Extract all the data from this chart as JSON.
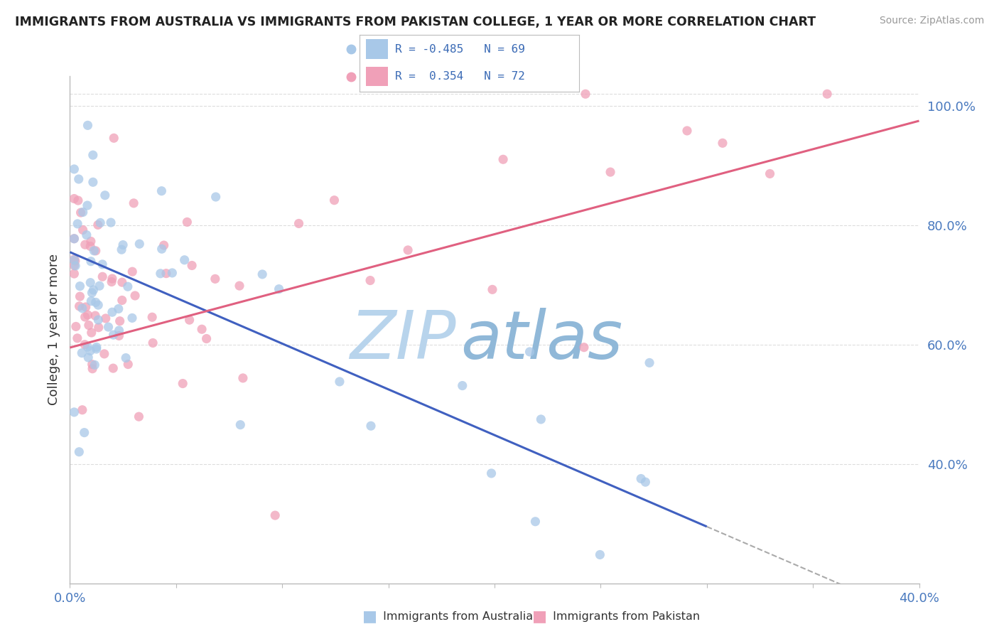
{
  "title": "IMMIGRANTS FROM AUSTRALIA VS IMMIGRANTS FROM PAKISTAN COLLEGE, 1 YEAR OR MORE CORRELATION CHART",
  "source": "Source: ZipAtlas.com",
  "ylabel": "College, 1 year or more",
  "right_yticks": [
    "40.0%",
    "60.0%",
    "80.0%",
    "100.0%"
  ],
  "right_ytick_vals": [
    0.4,
    0.6,
    0.8,
    1.0
  ],
  "australia_color": "#a8c8e8",
  "pakistan_color": "#f0a0b8",
  "australia_line_color": "#4060c0",
  "pakistan_line_color": "#e06080",
  "watermark_zip": "ZIP",
  "watermark_atlas": "atlas",
  "watermark_color": "#c8dff0",
  "background_color": "#ffffff",
  "grid_color": "#dddddd",
  "xlim": [
    0.0,
    0.4
  ],
  "ylim": [
    0.2,
    1.05
  ],
  "aus_line_x0": 0.0,
  "aus_line_y0": 0.755,
  "aus_line_x1": 0.3,
  "aus_line_y1": 0.295,
  "pak_line_x0": 0.0,
  "pak_line_y0": 0.595,
  "pak_line_x1": 0.4,
  "pak_line_y1": 0.975
}
